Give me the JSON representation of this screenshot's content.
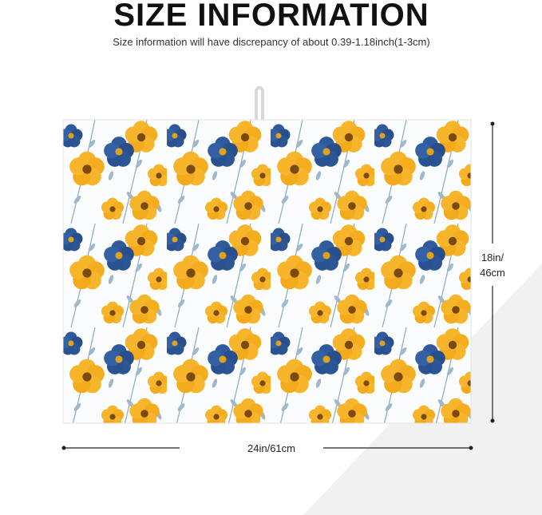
{
  "header": {
    "title": "SIZE INFORMATION",
    "subtitle": "Size information will have discrepancy of about 0.39-1.18inch(1-3cm)"
  },
  "dimensions": {
    "height_label": [
      "18in/",
      "46cm"
    ],
    "width_label": "24in/61cm"
  }
}
